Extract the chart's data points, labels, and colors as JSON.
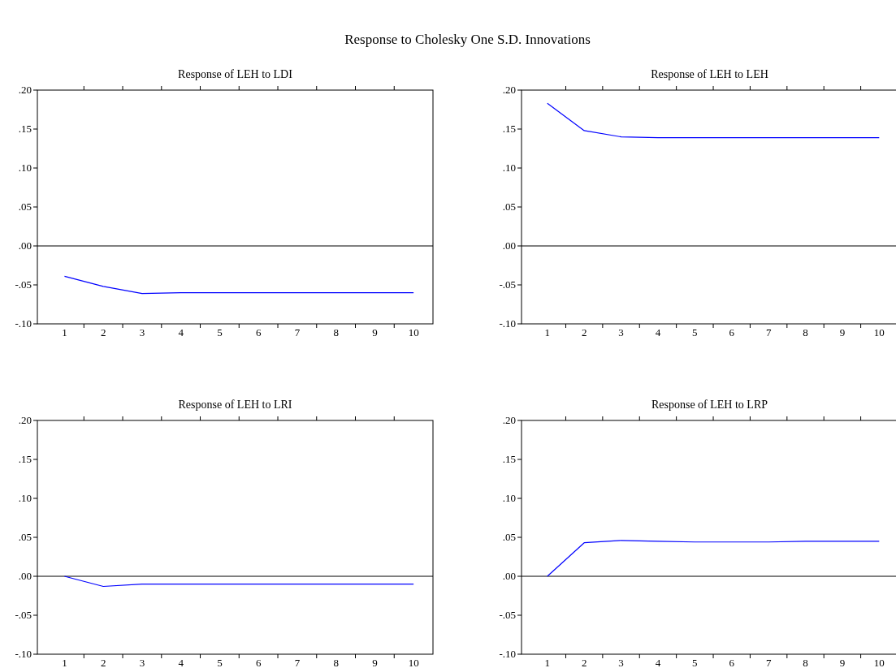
{
  "chart_data": [
    {
      "type": "line",
      "title": "Response of LEH to LDI",
      "annotations": [
        "Response to Cholesky One S.D. Innovations"
      ],
      "x": [
        1,
        2,
        3,
        4,
        5,
        6,
        7,
        8,
        9,
        10
      ],
      "series": [
        {
          "color": "#0000ff",
          "values": [
            -0.039,
            -0.052,
            -0.061,
            -0.06,
            -0.06,
            -0.06,
            -0.06,
            -0.06,
            -0.06,
            -0.06
          ]
        }
      ],
      "xlim": [
        0.3,
        10.5
      ],
      "xticks": [
        1,
        {
          "value": 1.5,
          "label": null
        },
        2,
        {
          "value": 2.5,
          "label": null
        },
        3,
        {
          "value": 3.5,
          "label": null
        },
        4,
        {
          "value": 4.5,
          "label": null
        },
        5,
        {
          "value": 5.5,
          "label": null
        },
        6,
        {
          "value": 6.5,
          "label": null
        },
        7,
        {
          "value": 7.5,
          "label": null
        },
        8,
        {
          "value": 8.5,
          "label": null
        },
        9,
        {
          "value": 9.5,
          "label": null
        },
        10
      ],
      "ylim": [
        -0.1,
        0.2
      ],
      "yticks": [
        {
          "value": -0.1,
          "label": "-.10"
        },
        {
          "value": -0.05,
          "label": "-.05"
        },
        {
          "value": 0,
          "label": ".00"
        },
        {
          "value": 0.05,
          "label": ".05"
        },
        {
          "value": 0.1,
          "label": ".10"
        },
        {
          "value": 0.15,
          "label": ".15"
        },
        {
          "value": 0.2,
          "label": ".20"
        }
      ],
      "ref_lines": [
        {
          "axis": "y",
          "value": 0,
          "color": "#000000"
        }
      ],
      "grid": false
    },
    {
      "type": "line",
      "title": "Response of LEH to LEH",
      "x": [
        1,
        2,
        3,
        4,
        5,
        6,
        7,
        8,
        9,
        10
      ],
      "series": [
        {
          "color": "#0000ff",
          "values": [
            0.183,
            0.148,
            0.14,
            0.139,
            0.139,
            0.139,
            0.139,
            0.139,
            0.139,
            0.139
          ]
        }
      ],
      "xlim": [
        0.3,
        10.5
      ],
      "xticks": [
        1,
        {
          "value": 1.5,
          "label": null
        },
        2,
        {
          "value": 2.5,
          "label": null
        },
        3,
        {
          "value": 3.5,
          "label": null
        },
        4,
        {
          "value": 4.5,
          "label": null
        },
        5,
        {
          "value": 5.5,
          "label": null
        },
        6,
        {
          "value": 6.5,
          "label": null
        },
        7,
        {
          "value": 7.5,
          "label": null
        },
        8,
        {
          "value": 8.5,
          "label": null
        },
        9,
        {
          "value": 9.5,
          "label": null
        },
        10
      ],
      "ylim": [
        -0.1,
        0.2
      ],
      "yticks": [
        {
          "value": -0.1,
          "label": "-.10"
        },
        {
          "value": -0.05,
          "label": "-.05"
        },
        {
          "value": 0,
          "label": ".00"
        },
        {
          "value": 0.05,
          "label": ".05"
        },
        {
          "value": 0.1,
          "label": ".10"
        },
        {
          "value": 0.15,
          "label": ".15"
        },
        {
          "value": 0.2,
          "label": ".20"
        }
      ],
      "ref_lines": [
        {
          "axis": "y",
          "value": 0,
          "color": "#000000"
        }
      ],
      "grid": false
    },
    {
      "type": "line",
      "title": "Response of LEH to LRI",
      "x": [
        1,
        2,
        3,
        4,
        5,
        6,
        7,
        8,
        9,
        10
      ],
      "series": [
        {
          "color": "#0000ff",
          "values": [
            0,
            -0.013,
            -0.01,
            -0.01,
            -0.01,
            -0.01,
            -0.01,
            -0.01,
            -0.01,
            -0.01
          ]
        }
      ],
      "xlim": [
        0.3,
        10.5
      ],
      "xticks": [
        1,
        {
          "value": 1.5,
          "label": null
        },
        2,
        {
          "value": 2.5,
          "label": null
        },
        3,
        {
          "value": 3.5,
          "label": null
        },
        4,
        {
          "value": 4.5,
          "label": null
        },
        5,
        {
          "value": 5.5,
          "label": null
        },
        6,
        {
          "value": 6.5,
          "label": null
        },
        7,
        {
          "value": 7.5,
          "label": null
        },
        8,
        {
          "value": 8.5,
          "label": null
        },
        9,
        {
          "value": 9.5,
          "label": null
        },
        10
      ],
      "ylim": [
        -0.1,
        0.2
      ],
      "yticks": [
        {
          "value": -0.1,
          "label": "-.10"
        },
        {
          "value": -0.05,
          "label": "-.05"
        },
        {
          "value": 0,
          "label": ".00"
        },
        {
          "value": 0.05,
          "label": ".05"
        },
        {
          "value": 0.1,
          "label": ".10"
        },
        {
          "value": 0.15,
          "label": ".15"
        },
        {
          "value": 0.2,
          "label": ".20"
        }
      ],
      "ref_lines": [
        {
          "axis": "y",
          "value": 0,
          "color": "#000000"
        }
      ],
      "grid": false
    },
    {
      "type": "line",
      "title": "Response of LEH to LRP",
      "x": [
        1,
        2,
        3,
        4,
        5,
        6,
        7,
        8,
        9,
        10
      ],
      "series": [
        {
          "color": "#0000ff",
          "values": [
            0,
            0.043,
            0.046,
            0.045,
            0.044,
            0.044,
            0.044,
            0.045,
            0.045,
            0.045
          ]
        }
      ],
      "xlim": [
        0.3,
        10.5
      ],
      "xticks": [
        1,
        {
          "value": 1.5,
          "label": null
        },
        2,
        {
          "value": 2.5,
          "label": null
        },
        3,
        {
          "value": 3.5,
          "label": null
        },
        4,
        {
          "value": 4.5,
          "label": null
        },
        5,
        {
          "value": 5.5,
          "label": null
        },
        6,
        {
          "value": 6.5,
          "label": null
        },
        7,
        {
          "value": 7.5,
          "label": null
        },
        8,
        {
          "value": 8.5,
          "label": null
        },
        9,
        {
          "value": 9.5,
          "label": null
        },
        10
      ],
      "ylim": [
        -0.1,
        0.2
      ],
      "yticks": [
        {
          "value": -0.1,
          "label": "-.10"
        },
        {
          "value": -0.05,
          "label": "-.05"
        },
        {
          "value": 0,
          "label": ".00"
        },
        {
          "value": 0.05,
          "label": ".05"
        },
        {
          "value": 0.1,
          "label": ".10"
        },
        {
          "value": 0.15,
          "label": ".15"
        },
        {
          "value": 0.2,
          "label": ".20"
        }
      ],
      "ref_lines": [
        {
          "axis": "y",
          "value": 0,
          "color": "#000000"
        }
      ],
      "grid": false
    }
  ]
}
